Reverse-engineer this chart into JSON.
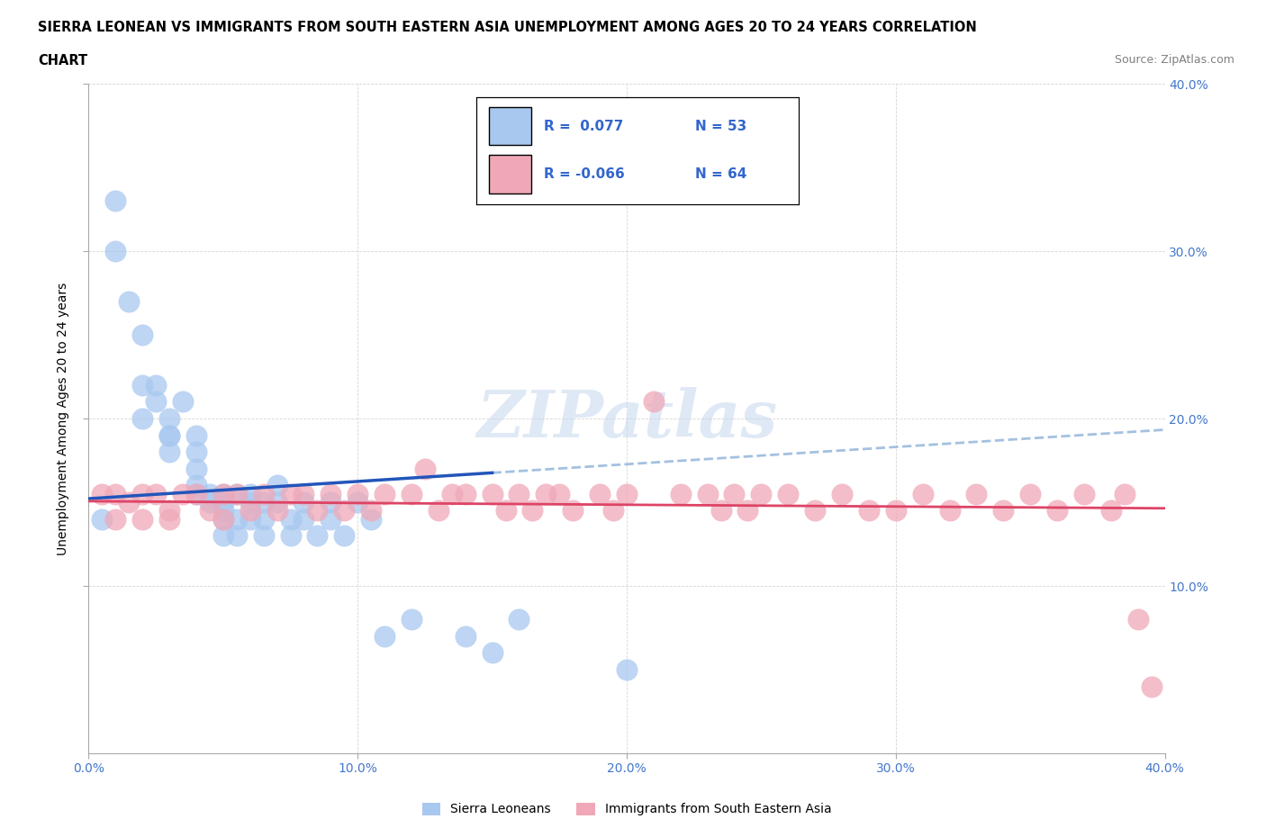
{
  "title_line1": "SIERRA LEONEAN VS IMMIGRANTS FROM SOUTH EASTERN ASIA UNEMPLOYMENT AMONG AGES 20 TO 24 YEARS CORRELATION",
  "title_line2": "CHART",
  "source": "Source: ZipAtlas.com",
  "ylabel": "Unemployment Among Ages 20 to 24 years",
  "watermark": "ZIPatlas",
  "blue_r": 0.077,
  "blue_n": 53,
  "pink_r": -0.066,
  "pink_n": 64,
  "blue_color": "#a8c8f0",
  "pink_color": "#f0a8b8",
  "blue_line_color": "#2255bb",
  "pink_line_color": "#dd4466",
  "blue_dash_color": "#99bbdd",
  "xlim": [
    0.0,
    0.4
  ],
  "ylim": [
    0.0,
    0.4
  ],
  "blue_x": [
    0.005,
    0.01,
    0.01,
    0.015,
    0.02,
    0.02,
    0.02,
    0.025,
    0.025,
    0.03,
    0.03,
    0.03,
    0.03,
    0.035,
    0.04,
    0.04,
    0.04,
    0.04,
    0.04,
    0.045,
    0.045,
    0.05,
    0.05,
    0.05,
    0.05,
    0.05,
    0.055,
    0.055,
    0.055,
    0.06,
    0.06,
    0.06,
    0.065,
    0.065,
    0.065,
    0.07,
    0.07,
    0.075,
    0.075,
    0.08,
    0.08,
    0.085,
    0.09,
    0.09,
    0.095,
    0.1,
    0.105,
    0.11,
    0.12,
    0.14,
    0.15,
    0.16,
    0.2
  ],
  "blue_y": [
    0.14,
    0.33,
    0.3,
    0.27,
    0.25,
    0.22,
    0.2,
    0.22,
    0.21,
    0.2,
    0.19,
    0.19,
    0.18,
    0.21,
    0.19,
    0.18,
    0.17,
    0.16,
    0.155,
    0.155,
    0.15,
    0.155,
    0.15,
    0.145,
    0.14,
    0.13,
    0.155,
    0.14,
    0.13,
    0.155,
    0.15,
    0.14,
    0.15,
    0.14,
    0.13,
    0.16,
    0.15,
    0.14,
    0.13,
    0.15,
    0.14,
    0.13,
    0.15,
    0.14,
    0.13,
    0.15,
    0.14,
    0.07,
    0.08,
    0.07,
    0.06,
    0.08,
    0.05
  ],
  "pink_x": [
    0.005,
    0.01,
    0.01,
    0.015,
    0.02,
    0.02,
    0.025,
    0.03,
    0.03,
    0.035,
    0.04,
    0.045,
    0.05,
    0.05,
    0.055,
    0.06,
    0.065,
    0.07,
    0.075,
    0.08,
    0.085,
    0.09,
    0.095,
    0.1,
    0.105,
    0.11,
    0.12,
    0.125,
    0.13,
    0.135,
    0.14,
    0.15,
    0.155,
    0.16,
    0.165,
    0.17,
    0.175,
    0.18,
    0.19,
    0.195,
    0.2,
    0.21,
    0.22,
    0.23,
    0.235,
    0.24,
    0.245,
    0.25,
    0.26,
    0.27,
    0.28,
    0.29,
    0.3,
    0.31,
    0.32,
    0.33,
    0.34,
    0.35,
    0.36,
    0.37,
    0.38,
    0.385,
    0.39,
    0.395
  ],
  "pink_y": [
    0.155,
    0.155,
    0.14,
    0.15,
    0.155,
    0.14,
    0.155,
    0.145,
    0.14,
    0.155,
    0.155,
    0.145,
    0.155,
    0.14,
    0.155,
    0.145,
    0.155,
    0.145,
    0.155,
    0.155,
    0.145,
    0.155,
    0.145,
    0.155,
    0.145,
    0.155,
    0.155,
    0.17,
    0.145,
    0.155,
    0.155,
    0.155,
    0.145,
    0.155,
    0.145,
    0.155,
    0.155,
    0.145,
    0.155,
    0.145,
    0.155,
    0.21,
    0.155,
    0.155,
    0.145,
    0.155,
    0.145,
    0.155,
    0.155,
    0.145,
    0.155,
    0.145,
    0.145,
    0.155,
    0.145,
    0.155,
    0.145,
    0.155,
    0.145,
    0.155,
    0.145,
    0.155,
    0.08,
    0.04
  ]
}
